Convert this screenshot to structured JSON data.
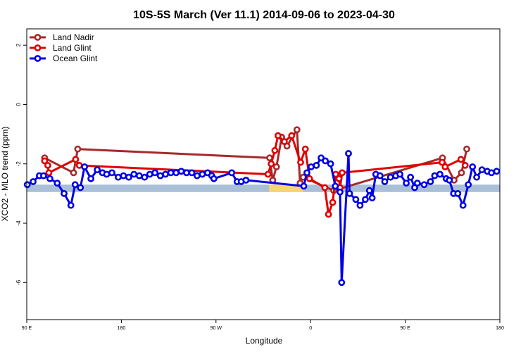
{
  "chart_data": {
    "type": "line",
    "title": "10S-5S March (Ver 11.1)   2014-09-06 to 2023-04-30",
    "xlabel": "Longitude",
    "ylabel": "XCO2 - MLO trend (ppm)",
    "xlim": [
      90,
      540
    ],
    "ylim": [
      -7.25,
      2.55
    ],
    "x_tick_values": [
      90,
      180,
      270,
      360,
      450,
      540
    ],
    "x_tick_labels": [
      "90 E",
      "180",
      "90 W",
      "0",
      "90 E",
      "180"
    ],
    "y_tick_values": [
      2,
      0,
      -2,
      -4,
      -6
    ],
    "y_tick_labels": [
      "2",
      "0",
      "-2",
      "-4",
      "-6"
    ],
    "legend_position": "top-left",
    "grid": false,
    "reference_band": {
      "y_min": -2.95,
      "y_max": -2.7,
      "color": "#a9bfd8"
    },
    "highlight_bands": [
      {
        "x_min": 320.5,
        "x_max": 353,
        "y_min": -2.95,
        "y_max": -2.7,
        "color": "#f8d574"
      },
      {
        "x_min": 380.5,
        "x_max": 389,
        "y_min": -2.95,
        "y_max": -2.7,
        "color": "#f8d574"
      }
    ],
    "series": [
      {
        "name": "Land Nadir",
        "color": "#a52a2a",
        "points": [
          [
            107,
            -1.8
          ],
          [
            134.5,
            -2.3
          ],
          [
            138.5,
            -1.5
          ],
          [
            321,
            -1.8
          ],
          [
            324,
            -2.55
          ],
          [
            327.5,
            -2.1
          ],
          [
            332.5,
            -1.1
          ],
          [
            337.5,
            -1.4
          ],
          [
            347,
            -0.85
          ],
          [
            350,
            -2.65
          ],
          [
            353,
            -2.45
          ],
          [
            382,
            -2.9
          ],
          [
            485.5,
            -1.8
          ],
          [
            496.5,
            -2.55
          ],
          [
            503.5,
            -2.3
          ],
          [
            508.5,
            -1.5
          ]
        ]
      },
      {
        "name": "Land Glint",
        "color": "#e00000",
        "points": [
          [
            107,
            -1.9
          ],
          [
            110,
            -2.05
          ],
          [
            111,
            -2.3
          ],
          [
            136.5,
            -1.85
          ],
          [
            140,
            -2.05
          ],
          [
            319.5,
            -2.35
          ],
          [
            322.5,
            -2.0
          ],
          [
            326,
            -1.55
          ],
          [
            329,
            -1.05
          ],
          [
            335,
            -1.25
          ],
          [
            342,
            -1.05
          ],
          [
            350.5,
            -1.95
          ],
          [
            355,
            -1.5
          ],
          [
            359,
            -2.5
          ],
          [
            373.5,
            -2.8
          ],
          [
            377,
            -3.7
          ],
          [
            381,
            -3.3
          ],
          [
            384,
            -2.35
          ],
          [
            387,
            -2.5
          ],
          [
            388,
            -2.8
          ],
          [
            390,
            -2.3
          ],
          [
            485,
            -1.95
          ],
          [
            488,
            -2.1
          ],
          [
            503,
            -1.85
          ],
          [
            507,
            -2.05
          ]
        ]
      },
      {
        "name": "Ocean Glint",
        "color": "#0000e6",
        "points": [
          [
            90.5,
            -2.7
          ],
          [
            96,
            -2.6
          ],
          [
            102,
            -2.4
          ],
          [
            106,
            -2.4
          ],
          [
            112,
            -2.5
          ],
          [
            119,
            -2.65
          ],
          [
            125.5,
            -3.0
          ],
          [
            132,
            -3.4
          ],
          [
            136,
            -2.7
          ],
          [
            141,
            -2.8
          ],
          [
            145,
            -2.1
          ],
          [
            151,
            -2.5
          ],
          [
            157,
            -2.2
          ],
          [
            162,
            -2.3
          ],
          [
            166,
            -2.35
          ],
          [
            171,
            -2.3
          ],
          [
            177,
            -2.45
          ],
          [
            182,
            -2.4
          ],
          [
            187,
            -2.45
          ],
          [
            192,
            -2.35
          ],
          [
            197,
            -2.4
          ],
          [
            202,
            -2.45
          ],
          [
            207,
            -2.35
          ],
          [
            212,
            -2.3
          ],
          [
            217,
            -2.4
          ],
          [
            222,
            -2.35
          ],
          [
            227,
            -2.3
          ],
          [
            232,
            -2.3
          ],
          [
            237,
            -2.25
          ],
          [
            242,
            -2.3
          ],
          [
            247,
            -2.3
          ],
          [
            252,
            -2.4
          ],
          [
            257,
            -2.35
          ],
          [
            262,
            -2.3
          ],
          [
            266,
            -2.4
          ],
          [
            268,
            -2.5
          ],
          [
            285,
            -2.3
          ],
          [
            290,
            -2.6
          ],
          [
            294,
            -2.6
          ],
          [
            298.5,
            -2.55
          ],
          [
            353.5,
            -2.75
          ],
          [
            356.5,
            -2.3
          ],
          [
            360.5,
            -2.1
          ],
          [
            365.5,
            -2.05
          ],
          [
            370,
            -1.8
          ],
          [
            374,
            -1.9
          ],
          [
            379,
            -2.0
          ],
          [
            383.5,
            -2.75
          ],
          [
            388,
            -2.95
          ],
          [
            397,
            -3.0
          ],
          [
            403,
            -3.2
          ],
          [
            407,
            -3.4
          ],
          [
            412,
            -3.2
          ],
          [
            416,
            -2.9
          ],
          [
            418.5,
            -3.15
          ],
          [
            422,
            -2.35
          ],
          [
            426,
            -2.4
          ],
          [
            430.5,
            -2.6
          ],
          [
            436,
            -2.45
          ],
          [
            441,
            -2.4
          ],
          [
            445,
            -2.35
          ],
          [
            451,
            -2.65
          ],
          [
            455,
            -2.45
          ],
          [
            459,
            -2.8
          ],
          [
            461.5,
            -2.65
          ],
          [
            468,
            -2.7
          ],
          [
            474,
            -2.6
          ],
          [
            478,
            -2.4
          ],
          [
            483,
            -2.35
          ],
          [
            489,
            -2.5
          ],
          [
            492,
            -2.55
          ],
          [
            496,
            -3.0
          ],
          [
            500,
            -3.0
          ],
          [
            505,
            -3.4
          ],
          [
            510,
            -2.7
          ],
          [
            514,
            -2.1
          ],
          [
            518,
            -2.45
          ],
          [
            523,
            -2.2
          ],
          [
            528,
            -2.25
          ],
          [
            532,
            -2.3
          ],
          [
            537,
            -2.25
          ]
        ]
      }
    ],
    "ocean_glint_extra": [
      [
        389.5,
        -6.0
      ],
      [
        396,
        -1.65
      ]
    ]
  }
}
